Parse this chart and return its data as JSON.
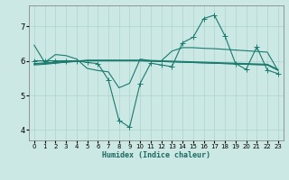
{
  "title": "",
  "xlabel": "Humidex (Indice chaleur)",
  "bg_color": "#cce8e4",
  "grid_color": "#aad4cc",
  "line_color": "#1a7a6e",
  "xlim": [
    -0.5,
    23.5
  ],
  "ylim": [
    3.7,
    7.6
  ],
  "xticks": [
    0,
    1,
    2,
    3,
    4,
    5,
    6,
    7,
    8,
    9,
    10,
    11,
    12,
    13,
    14,
    15,
    16,
    17,
    18,
    19,
    20,
    21,
    22,
    23
  ],
  "yticks": [
    4,
    5,
    6,
    7
  ],
  "lines": [
    [
      6.45,
      5.95,
      6.18,
      6.15,
      6.05,
      5.78,
      5.72,
      5.68,
      5.22,
      5.35,
      6.05,
      6.0,
      6.0,
      6.28,
      6.38,
      6.38,
      6.36,
      6.35,
      6.33,
      6.31,
      6.29,
      6.27,
      6.25,
      5.72
    ],
    [
      6.0,
      6.0,
      6.0,
      6.0,
      6.0,
      5.95,
      5.92,
      5.45,
      4.28,
      4.08,
      5.35,
      5.93,
      5.88,
      5.83,
      6.52,
      6.68,
      7.22,
      7.32,
      6.72,
      5.92,
      5.75,
      6.4,
      5.73,
      5.63
    ],
    [
      5.92,
      5.94,
      5.96,
      5.98,
      6.0,
      6.0,
      6.0,
      6.0,
      6.0,
      6.0,
      6.0,
      5.99,
      5.98,
      5.97,
      5.96,
      5.95,
      5.94,
      5.93,
      5.92,
      5.91,
      5.9,
      5.89,
      5.88,
      5.73
    ],
    [
      5.9,
      5.92,
      5.94,
      5.96,
      5.98,
      6.0,
      6.0,
      6.0,
      6.0,
      6.0,
      6.0,
      5.99,
      5.98,
      5.97,
      5.96,
      5.95,
      5.94,
      5.93,
      5.92,
      5.91,
      5.9,
      5.89,
      5.88,
      5.73
    ],
    [
      5.88,
      5.9,
      5.93,
      5.96,
      5.99,
      6.02,
      6.02,
      6.02,
      6.02,
      6.02,
      6.02,
      6.01,
      6.0,
      5.99,
      5.98,
      5.97,
      5.96,
      5.95,
      5.94,
      5.93,
      5.92,
      5.91,
      5.9,
      5.75
    ]
  ],
  "linewidth": 0.8,
  "marker_size": 2.5
}
